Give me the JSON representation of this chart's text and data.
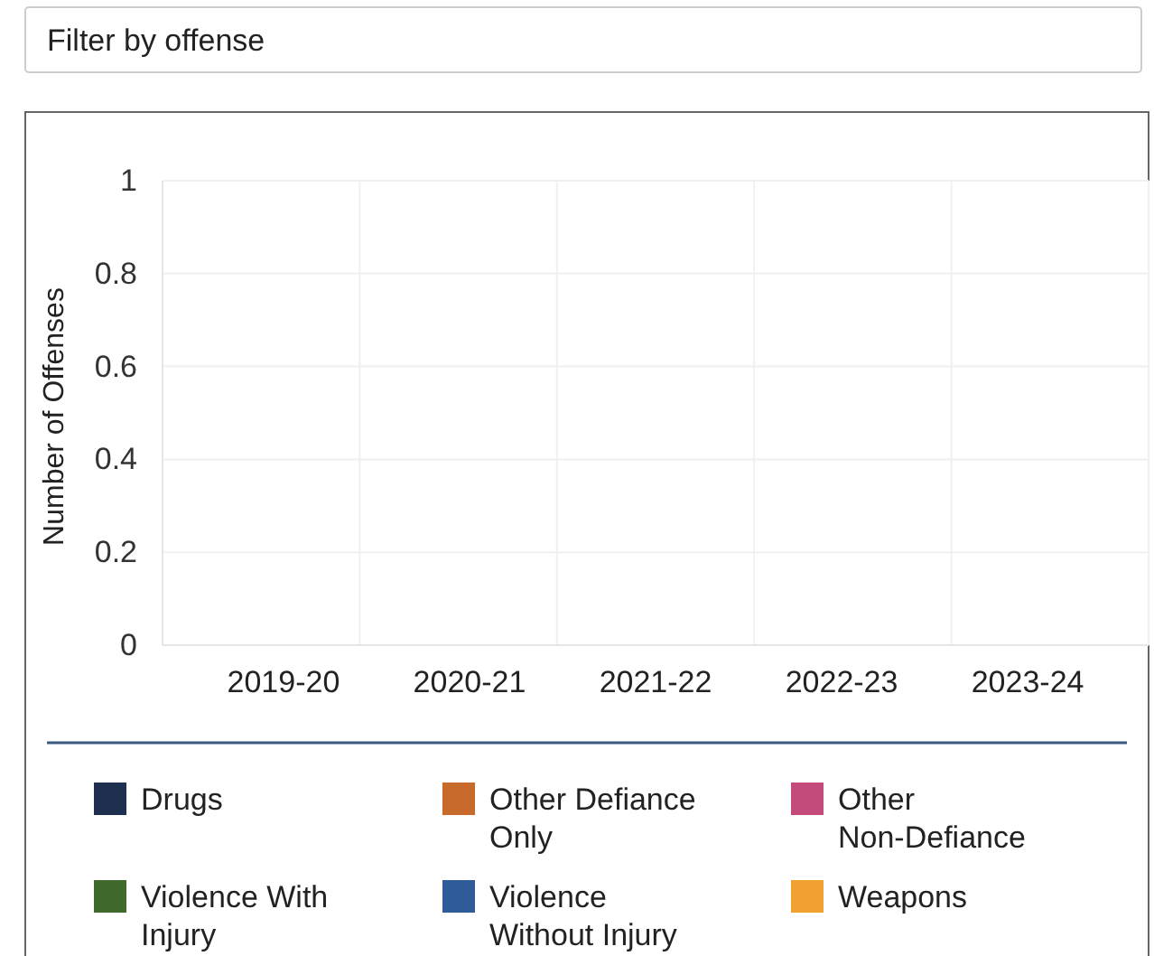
{
  "chart_data": {
    "type": "bar",
    "ylabel": "Number of Offenses",
    "annotations": [
      "Filter by offense"
    ],
    "categories": [
      "2019-20",
      "2020-21",
      "2021-22",
      "2022-23",
      "2023-24"
    ],
    "ylim": [
      0,
      1
    ],
    "yticks": [
      0,
      0.2,
      0.4,
      0.6,
      0.8,
      1
    ],
    "grid": true,
    "legend": "bottom",
    "series": [
      {
        "name": "Drugs",
        "color": "#1f2f4f",
        "values": [
          0,
          0,
          0,
          0,
          0
        ]
      },
      {
        "name": "Other Defiance Only",
        "color": "#c8692c",
        "values": [
          0,
          0,
          0,
          0,
          0
        ]
      },
      {
        "name": "Other Non-Defiance",
        "color": "#c54a7c",
        "values": [
          0,
          0,
          0,
          0,
          0
        ]
      },
      {
        "name": "Violence With Injury",
        "color": "#3f6a2c",
        "values": [
          0,
          0,
          0,
          0,
          0
        ]
      },
      {
        "name": "Violence Without Injury",
        "color": "#2f5c98",
        "values": [
          0,
          0,
          0,
          0,
          0
        ]
      },
      {
        "name": "Weapons",
        "color": "#f0a132",
        "values": [
          0,
          0,
          0,
          0,
          0
        ]
      }
    ]
  }
}
